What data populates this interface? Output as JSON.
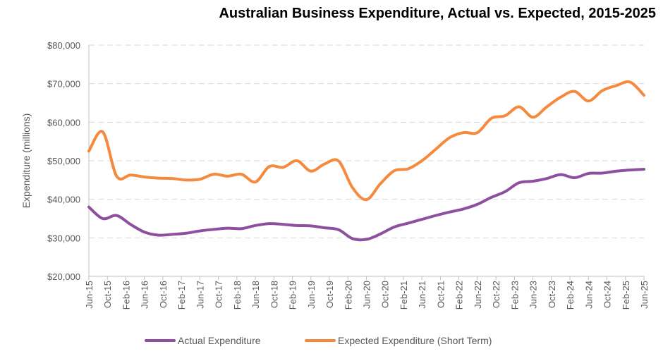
{
  "chart_data": {
    "type": "line",
    "title": "Australian Business Expenditure, Actual vs. Expected, 2015-2025",
    "xlabel": "",
    "ylabel": "Expenditure  (millions)",
    "ylim": [
      20000,
      80000
    ],
    "yticks": [
      20000,
      30000,
      40000,
      50000,
      60000,
      70000,
      80000
    ],
    "ytick_labels": [
      "$20,000",
      "$30,000",
      "$40,000",
      "$50,000",
      "$60,000",
      "$70,000",
      "$80,000"
    ],
    "grid": true,
    "legend": "bottom",
    "categories": [
      "Jun-15",
      "Oct-15",
      "Feb-16",
      "Jun-16",
      "Oct-16",
      "Feb-17",
      "Jun-17",
      "Oct-17",
      "Feb-18",
      "Jun-18",
      "Oct-18",
      "Feb-19",
      "Jun-19",
      "Oct-19",
      "Feb-20",
      "Jun-20",
      "Oct-20",
      "Feb-21",
      "Jun-21",
      "Oct-21",
      "Feb-22",
      "Jun-22",
      "Oct-22",
      "Feb-23",
      "Jun-23",
      "Oct-23",
      "Feb-24",
      "Jun-24",
      "Oct-24",
      "Feb-25",
      "Jun-25"
    ],
    "x": [
      "Jun-15",
      "Sep-15",
      "Dec-15",
      "Mar-16",
      "Jun-16",
      "Sep-16",
      "Dec-16",
      "Mar-17",
      "Jun-17",
      "Sep-17",
      "Dec-17",
      "Mar-18",
      "Jun-18",
      "Sep-18",
      "Dec-18",
      "Mar-19",
      "Jun-19",
      "Sep-19",
      "Dec-19",
      "Mar-20",
      "Jun-20",
      "Sep-20",
      "Dec-20",
      "Mar-21",
      "Jun-21",
      "Sep-21",
      "Dec-21",
      "Mar-22",
      "Jun-22",
      "Sep-22",
      "Dec-22",
      "Mar-23",
      "Jun-23",
      "Sep-23",
      "Dec-23",
      "Mar-24",
      "Jun-24",
      "Sep-24",
      "Dec-24",
      "Mar-25",
      "Jun-25"
    ],
    "series": [
      {
        "name": "Actual Expenditure",
        "color": "#8e4f9e",
        "values": [
          38000,
          35000,
          35800,
          33500,
          31500,
          30700,
          30900,
          31200,
          31800,
          32200,
          32500,
          32400,
          33200,
          33700,
          33500,
          33200,
          33100,
          32600,
          32100,
          29800,
          29600,
          31000,
          32800,
          33800,
          34800,
          35800,
          36700,
          37500,
          38700,
          40500,
          42000,
          44300,
          44700,
          45400,
          46400,
          45600,
          46700,
          46800,
          47300,
          47600,
          47800
        ]
      },
      {
        "name": "Expected Expenditure (Short Term)",
        "color": "#f58a3e",
        "values": [
          52500,
          57500,
          46000,
          46300,
          45800,
          45500,
          45400,
          45000,
          45200,
          46500,
          46000,
          46500,
          44500,
          48500,
          48300,
          50000,
          47300,
          49200,
          49900,
          43000,
          39900,
          44000,
          47400,
          47900,
          50000,
          53000,
          56000,
          57300,
          57300,
          61000,
          61700,
          64000,
          61300,
          64000,
          66500,
          68000,
          65500,
          68200,
          69500,
          70400,
          67000
        ]
      }
    ]
  }
}
